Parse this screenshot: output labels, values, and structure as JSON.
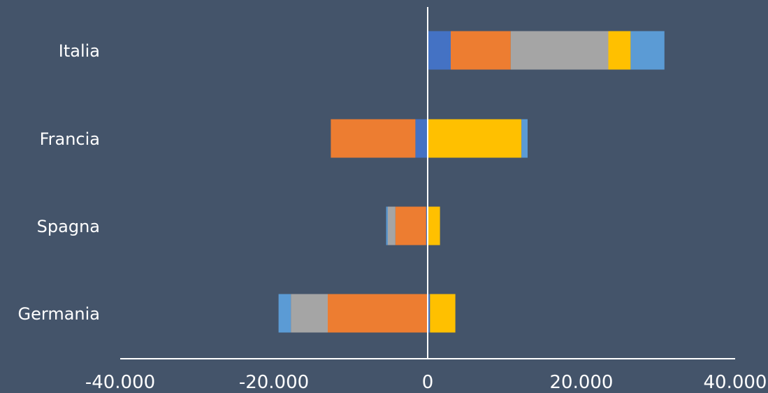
{
  "chart_data": {
    "type": "bar",
    "orientation": "horizontal",
    "stacked": true,
    "categories": [
      "Italia",
      "Francia",
      "Spagna",
      "Germania"
    ],
    "x_ticks": [
      "-40.000",
      "-20.000",
      "0",
      "20.000",
      "40.000"
    ],
    "x_tick_values": [
      -40000,
      -20000,
      0,
      20000,
      40000
    ],
    "xlim": [
      -40000,
      40000
    ],
    "series": [
      {
        "color": "#4472c4",
        "values": [
          3000,
          -1600,
          -200,
          300
        ]
      },
      {
        "color": "#ed7d31",
        "values": [
          7800,
          -11000,
          -4000,
          -13000
        ]
      },
      {
        "color": "#a5a5a5",
        "values": [
          12700,
          0,
          -1000,
          -4800
        ]
      },
      {
        "color": "#ffc000",
        "values": [
          2900,
          12200,
          1600,
          3300
        ]
      },
      {
        "color": "#5b9bd5",
        "values": [
          4400,
          800,
          -200,
          -1600
        ]
      }
    ],
    "title": "",
    "xlabel": "",
    "ylabel": "",
    "grid": false,
    "legend": "none",
    "colors": {
      "background": "#44546a",
      "text": "#ffffff",
      "axis": "#ffffff"
    }
  }
}
